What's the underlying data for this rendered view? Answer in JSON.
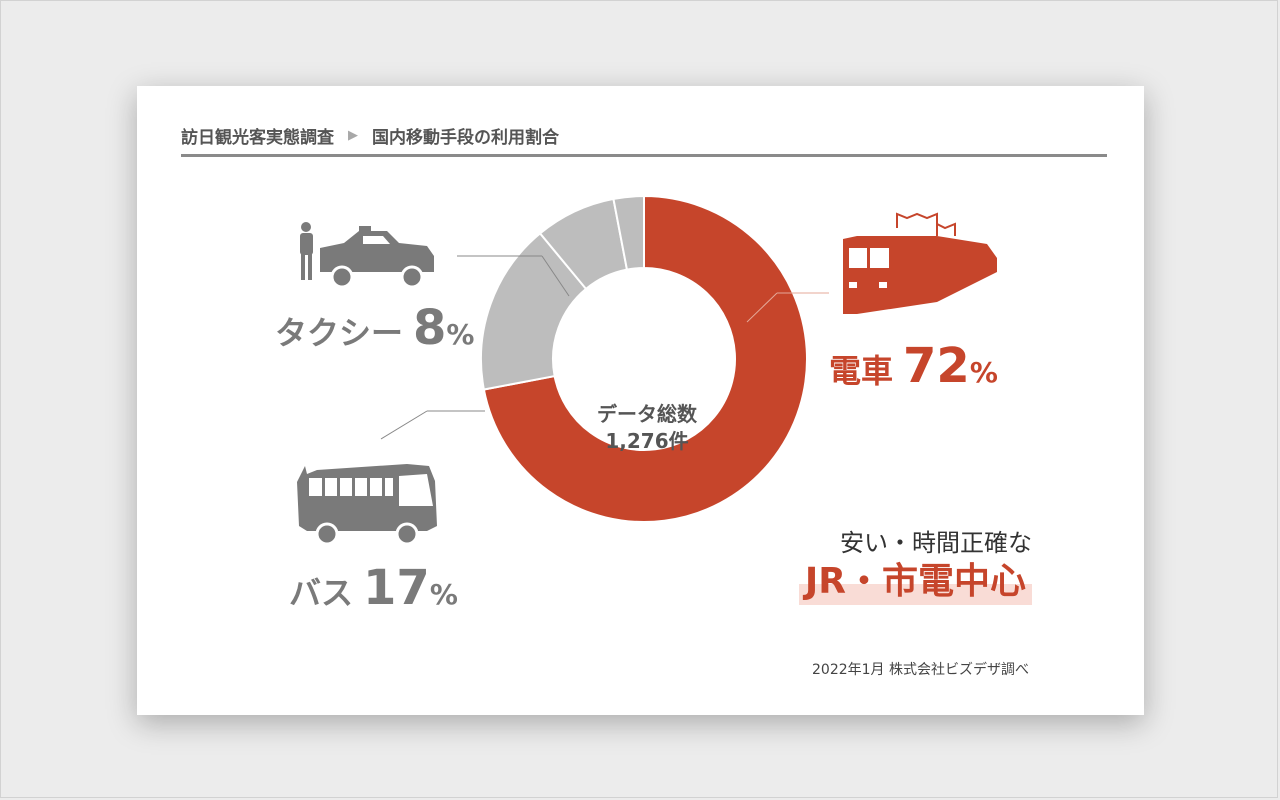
{
  "header": {
    "breadcrumb_parent": "訪日観光客実態調査",
    "separator": "▶",
    "breadcrumb_current": "国内移動手段の利用割合"
  },
  "chart_data": {
    "type": "pie",
    "donut": true,
    "center_label": [
      "データ総数",
      "1,276件"
    ],
    "slices": [
      {
        "label": "電車",
        "value": 72,
        "color": "#c6452b"
      },
      {
        "label": "バス",
        "value": 17,
        "color": "#bdbdbd"
      },
      {
        "label": "タクシー",
        "value": 8,
        "color": "#bdbdbd"
      },
      {
        "label": "",
        "value": 3,
        "color": "#bdbdbd"
      }
    ],
    "labels_display": {
      "train": {
        "name": "電車",
        "value": "72",
        "unit": "%"
      },
      "bus": {
        "name": "バス",
        "value": "17",
        "unit": "%"
      },
      "taxi": {
        "name": "タクシー",
        "value": "8",
        "unit": "%"
      }
    }
  },
  "tagline": "安い・時間正確な",
  "highlight": "JR・市電中心",
  "source": "2022年1月  株式会社ビズデザ調べ",
  "icons": [
    "train-icon",
    "taxi-icon",
    "bus-icon"
  ],
  "colors": {
    "accent": "#c6452b",
    "muted": "#7a7a7a",
    "slice_gray": "#bdbdbd"
  }
}
